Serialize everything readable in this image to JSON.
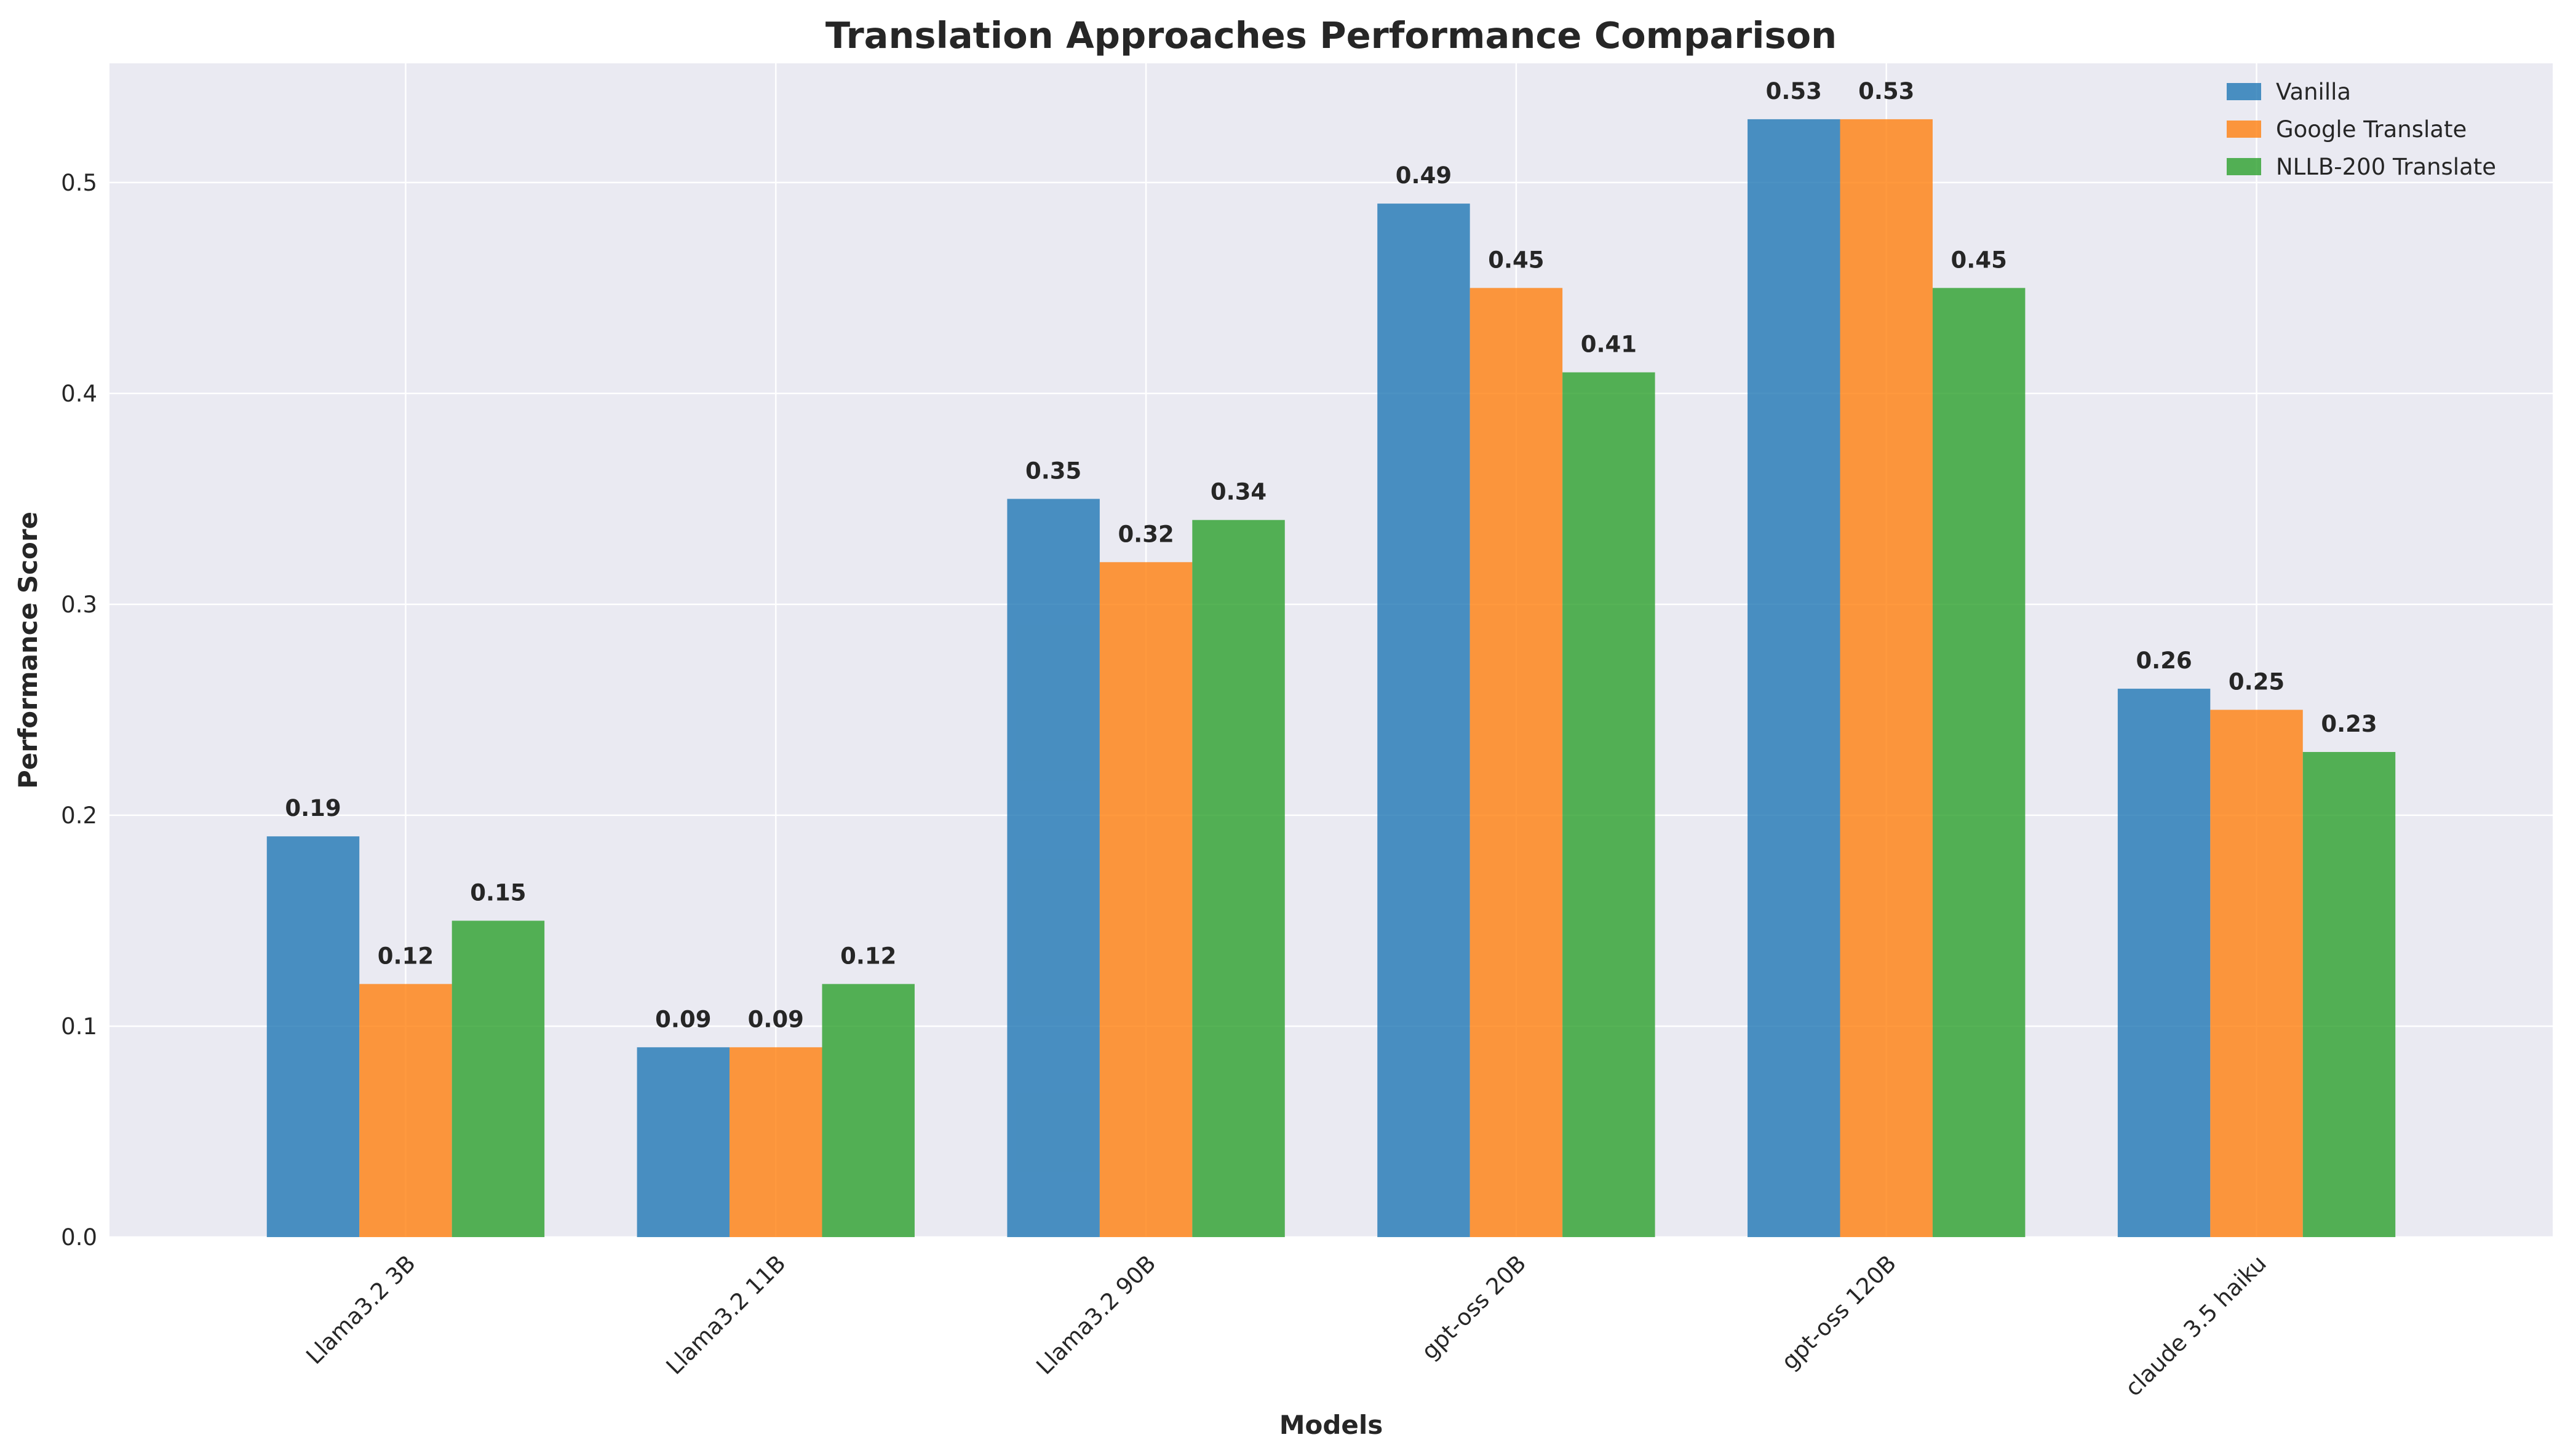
{
  "chart_data": {
    "type": "bar",
    "title": "Translation Approaches Performance Comparison",
    "xlabel": "Models",
    "ylabel": "Performance Score",
    "categories": [
      "Llama3.2 3B",
      "Llama3.2 11B",
      "Llama3.2 90B",
      "gpt-oss 20B",
      "gpt-oss 120B",
      "claude 3.5 haiku"
    ],
    "series": [
      {
        "name": "Vanilla",
        "color": "#1f77b4",
        "values": [
          0.19,
          0.09,
          0.35,
          0.49,
          0.53,
          0.26
        ]
      },
      {
        "name": "Google Translate",
        "color": "#ff7f0e",
        "values": [
          0.12,
          0.09,
          0.32,
          0.45,
          0.53,
          0.25
        ]
      },
      {
        "name": "NLLB-200 Translate",
        "color": "#2ca02c",
        "values": [
          0.15,
          0.12,
          0.34,
          0.41,
          0.45,
          0.23
        ]
      }
    ],
    "yticks": [
      0.0,
      0.1,
      0.2,
      0.3,
      0.4,
      0.5
    ],
    "ylim": [
      0,
      0.5565
    ],
    "grid": true,
    "legend_position": "top-right",
    "background_color": "#eaeaf2",
    "grid_color": "#ffffff"
  }
}
